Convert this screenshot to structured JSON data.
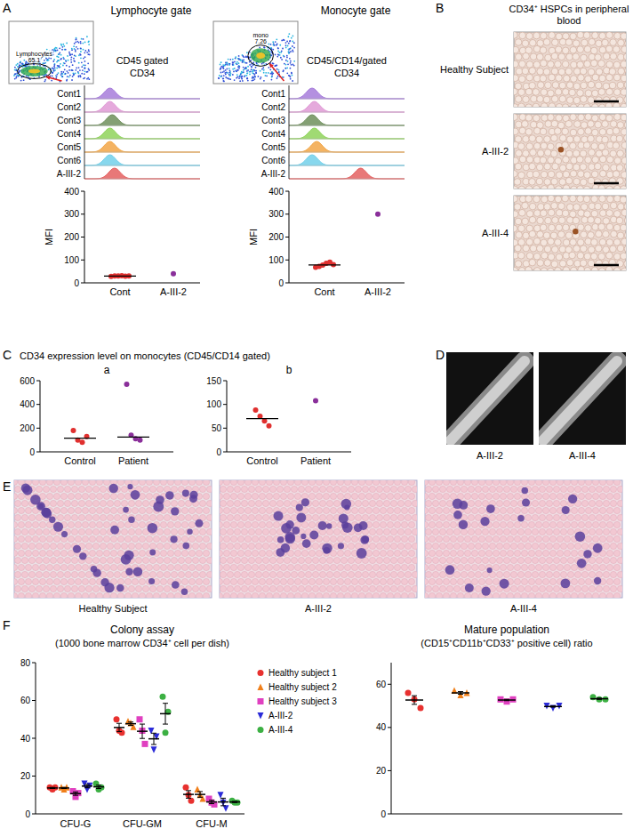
{
  "panel_letters": [
    "A",
    "B",
    "C",
    "D",
    "E",
    "F"
  ],
  "flow_panels": [
    {
      "title": "Lymphocyte gate",
      "gate_name": "Lymphocytes",
      "gate_percent": "65.1",
      "gating": "CD45 gated",
      "marker": "CD34",
      "samples": [
        "Cont1",
        "Cont2",
        "Cont3",
        "Cont4",
        "Cont5",
        "Cont6",
        "A-III-2"
      ],
      "colors": [
        "#a77ddb",
        "#e09ad6",
        "#6f8f5c",
        "#8fd35a",
        "#f2a646",
        "#72d0ea",
        "#e46060"
      ],
      "peaks": [
        22,
        22,
        24,
        22,
        22,
        22,
        26
      ]
    },
    {
      "title": "Monocyte gate",
      "gate_name": "mono",
      "gate_percent": "7.26",
      "gating": "CD45/CD14/gated",
      "marker": "CD34",
      "samples": [
        "Cont1",
        "Cont2",
        "Cont3",
        "Cont4",
        "Cont5",
        "Cont6",
        "A-III-2"
      ],
      "colors": [
        "#a77ddb",
        "#e09ad6",
        "#6f8f5c",
        "#8fd35a",
        "#f2a646",
        "#72d0ea",
        "#e46060"
      ],
      "peaks": [
        20,
        22,
        20,
        22,
        24,
        20,
        62
      ]
    }
  ],
  "blood_smears": {
    "title": "CD34⁺ HSPCs in peripheral blood",
    "rows": [
      "Healthy Subject",
      "A-III-2",
      "A-III-4"
    ]
  },
  "chart_c_title": "CD34 expression level on monocytes (CD45/CD14 gated)",
  "xrays": {
    "labels": [
      "A-III-2",
      "A-III-4"
    ]
  },
  "marrow_smears": {
    "labels": [
      "Healthy Subject",
      "A-III-2",
      "A-III-4"
    ]
  },
  "chart_data": [
    {
      "type": "strip",
      "ylabel": "MFI",
      "categories": [
        "Cont",
        "A-III-2"
      ],
      "groups": [
        {
          "color": "#e0302f",
          "values": [
            28,
            30,
            30,
            31,
            29,
            30
          ],
          "median": 30
        },
        {
          "color": "#8a2f9a",
          "values": [
            40
          ]
        }
      ],
      "ylim": [
        0,
        400
      ],
      "yticks": [
        0,
        100,
        200,
        300,
        400
      ]
    },
    {
      "type": "strip",
      "ylabel": "MFI",
      "categories": [
        "Cont",
        "A-III-2"
      ],
      "groups": [
        {
          "color": "#e0302f",
          "values": [
            68,
            72,
            78,
            85,
            90,
            80
          ],
          "median": 78
        },
        {
          "color": "#8a2f9a",
          "values": [
            300
          ]
        }
      ],
      "ylim": [
        0,
        400
      ],
      "yticks": [
        0,
        100,
        200,
        300,
        400
      ]
    },
    {
      "type": "strip",
      "title": "a",
      "categories": [
        "Control",
        "Patient"
      ],
      "groups": [
        {
          "color": "#e0302f",
          "values": [
            180,
            100,
            80,
            130
          ],
          "median": 115
        },
        {
          "color": "#8a2f9a",
          "values": [
            570,
            140,
            110,
            100
          ],
          "median": 125
        }
      ],
      "ylim": [
        0,
        600
      ],
      "yticks": [
        0,
        200,
        400,
        600
      ]
    },
    {
      "type": "strip",
      "title": "b",
      "categories": [
        "Control",
        "Patient"
      ],
      "groups": [
        {
          "color": "#e0302f",
          "values": [
            88,
            75,
            65,
            55
          ],
          "median": 70
        },
        {
          "color": "#8a2f9a",
          "values": [
            108
          ]
        }
      ],
      "ylim": [
        0,
        150
      ],
      "yticks": [
        0,
        50,
        100,
        150
      ]
    },
    {
      "type": "dot_mean_sem",
      "title": "Colony assay",
      "subtitle": "(1000 bone marrow CD34⁺ cell per dish)",
      "categories": [
        "CFU-G",
        "CFU-GM",
        "CFU-M"
      ],
      "legend": "right",
      "series": [
        {
          "name": "Healthy subject 1",
          "color": "#e8312f",
          "marker": "circle",
          "values": [
            [
              14,
              13,
              14
            ],
            [
              50,
              44,
              43
            ],
            [
              14,
              10,
              7
            ]
          ],
          "means": [
            13.7,
            45.7,
            10.3
          ],
          "errors": [
            0.3,
            2.2,
            2.0
          ]
        },
        {
          "name": "Healthy subject 2",
          "color": "#f07f1a",
          "marker": "triangle",
          "values": [
            [
              14,
              13,
              14
            ],
            [
              49,
              48,
              46
            ],
            [
              13,
              10,
              8
            ]
          ],
          "means": [
            13.7,
            47.7,
            10.3
          ],
          "errors": [
            0.3,
            0.9,
            1.5
          ]
        },
        {
          "name": "Healthy subject 3",
          "color": "#e040c0",
          "marker": "square",
          "values": [
            [
              12,
              9,
              11
            ],
            [
              50,
              44,
              37
            ],
            [
              8,
              6,
              5
            ]
          ],
          "means": [
            10.7,
            43.7,
            6.3
          ],
          "errors": [
            0.9,
            3.8,
            0.9
          ]
        },
        {
          "name": "A-III-2",
          "color": "#2b2bd8",
          "marker": "triangle-down",
          "values": [
            [
              16,
              13,
              15
            ],
            [
              44,
              34,
              41
            ],
            [
              10,
              6,
              3
            ]
          ],
          "means": [
            14.7,
            39.7,
            6.3
          ],
          "errors": [
            0.9,
            3.0,
            2.0
          ]
        },
        {
          "name": "A-III-4",
          "color": "#3cb043",
          "marker": "circle",
          "values": [
            [
              16,
              13,
              14
            ],
            [
              62,
              43,
              54
            ],
            [
              7,
              6,
              6
            ]
          ],
          "means": [
            14.3,
            53.0,
            6.3
          ],
          "errors": [
            0.9,
            5.5,
            0.3
          ]
        }
      ],
      "ylim": [
        0,
        80
      ],
      "yticks": [
        0,
        20,
        40,
        60,
        80
      ]
    },
    {
      "type": "dot_mean_sem",
      "title": "Mature population",
      "subtitle": "(CD15⁺CD11b⁺CD33⁺ positive cell) ratio",
      "categories": [
        null,
        null,
        null,
        null,
        null
      ],
      "groups": [
        {
          "color": "#e8312f",
          "marker": "circle",
          "values": [
            56,
            53,
            49
          ],
          "mean": 52.7,
          "error": 2.0
        },
        {
          "color": "#f07f1a",
          "marker": "triangle",
          "values": [
            57,
            55,
            56
          ],
          "mean": 56,
          "error": 0.6
        },
        {
          "color": "#e040c0",
          "marker": "square",
          "values": [
            53,
            52,
            53
          ],
          "mean": 52.7,
          "error": 0.3
        },
        {
          "color": "#2b2bd8",
          "marker": "triangle-down",
          "values": [
            50,
            49,
            50
          ],
          "mean": 49.7,
          "error": 0.3
        },
        {
          "color": "#3cb043",
          "marker": "circle",
          "values": [
            54,
            53,
            53
          ],
          "mean": 53.3,
          "error": 0.3
        }
      ],
      "ylim": [
        0,
        70
      ],
      "yticks": [
        0,
        20,
        40,
        60
      ]
    }
  ]
}
